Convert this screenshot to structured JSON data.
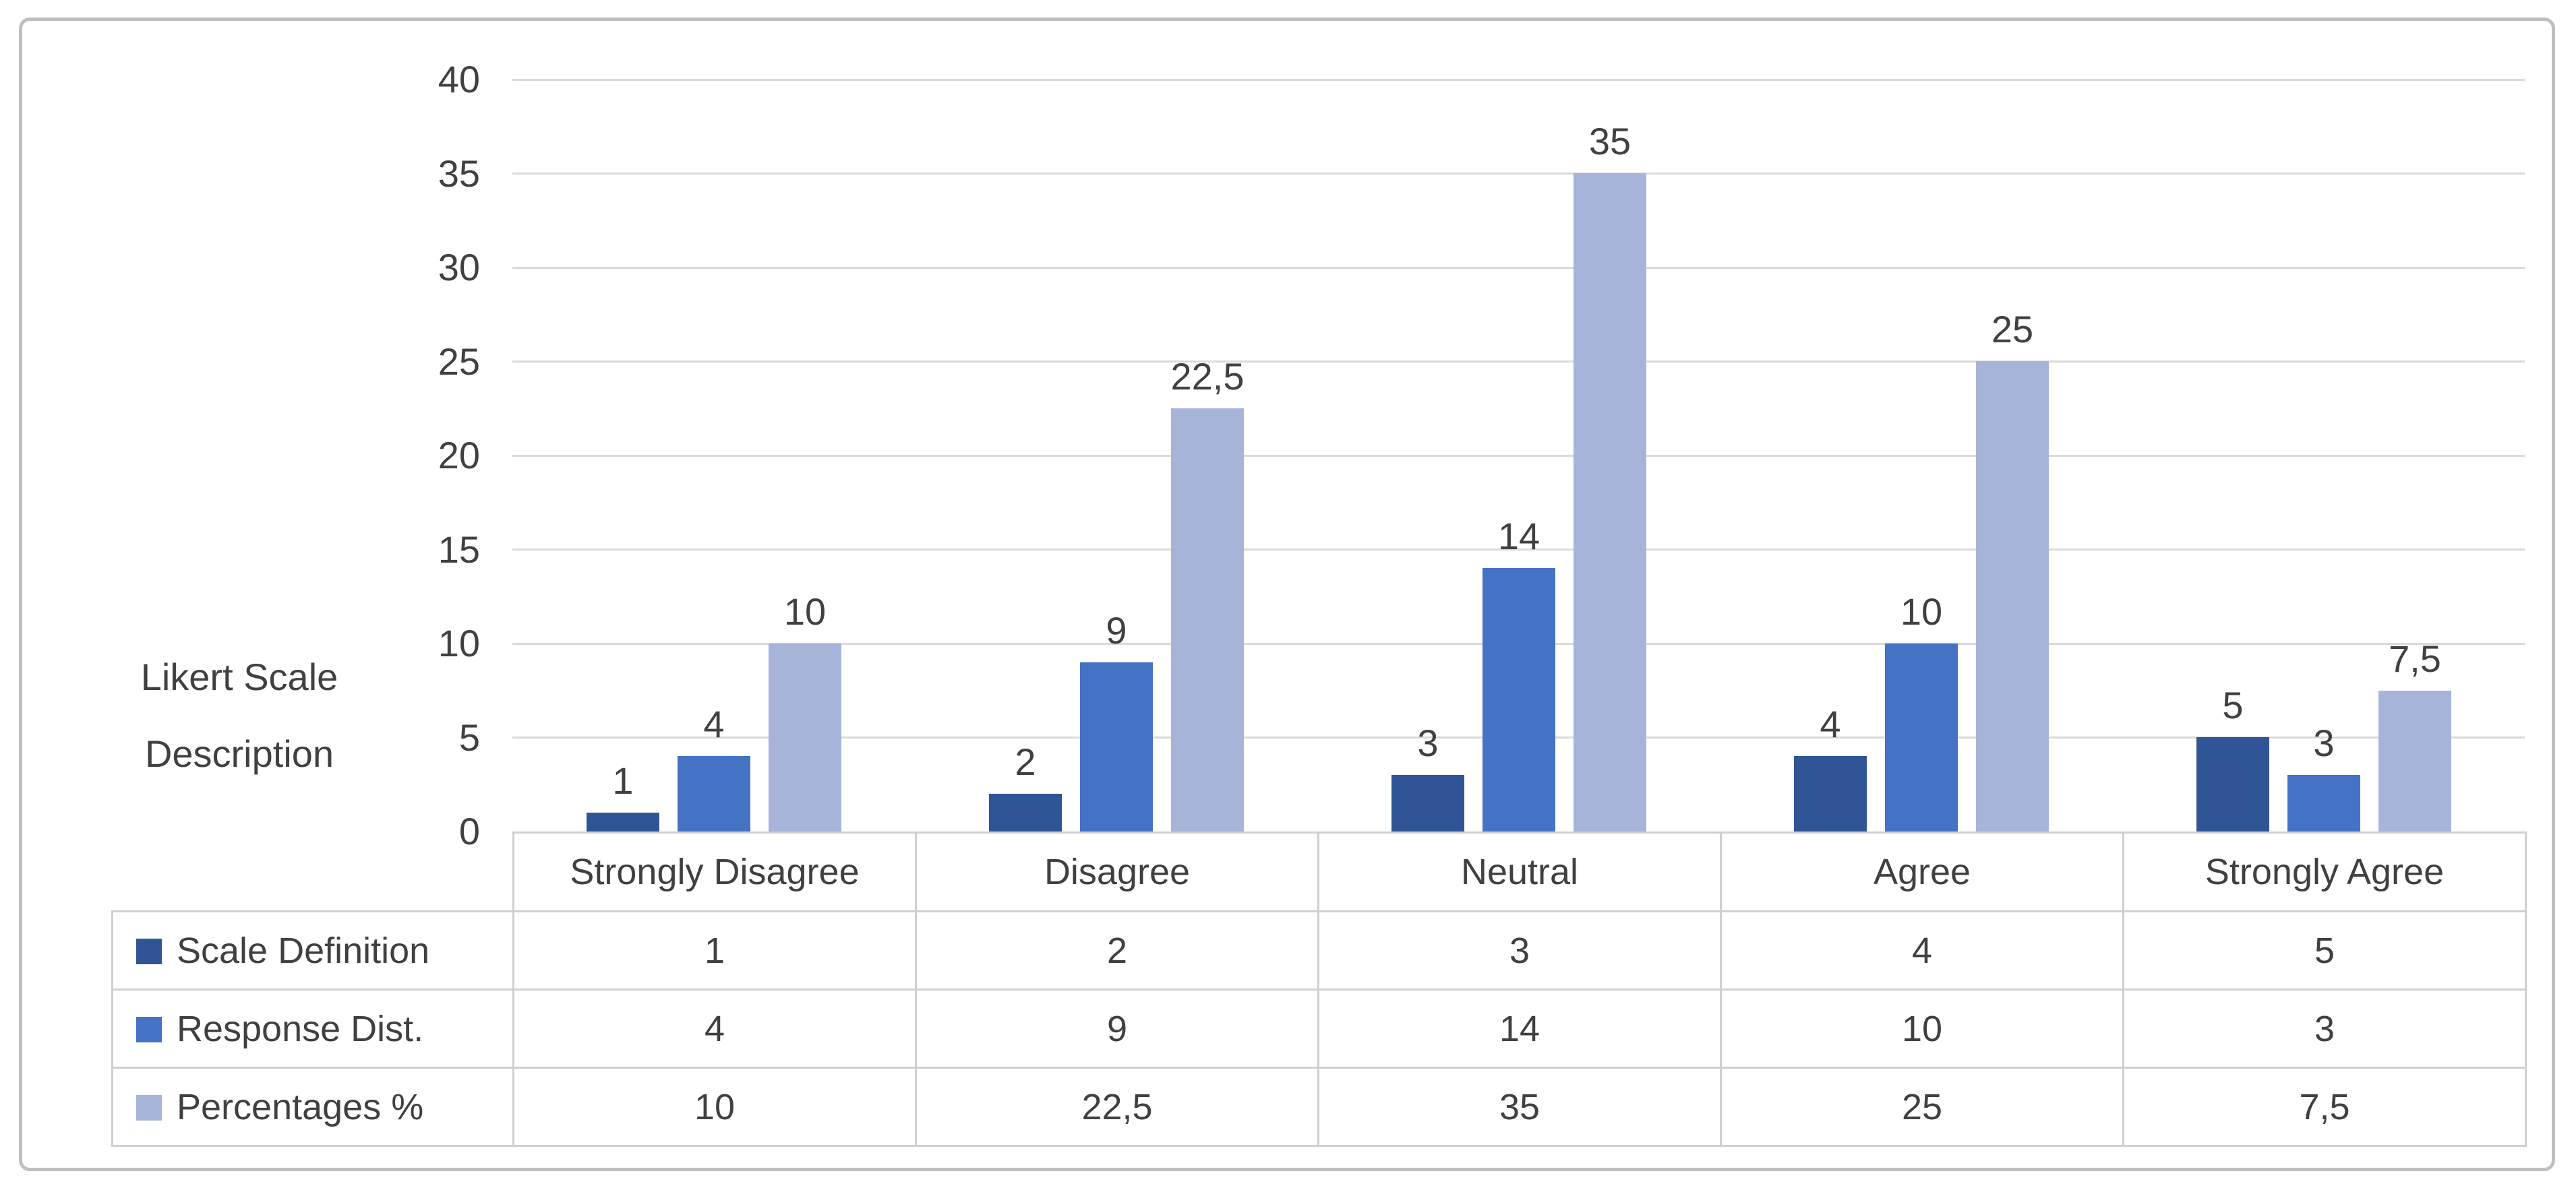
{
  "figure": {
    "background": "#ffffff",
    "border_color": "#bfbfbf"
  },
  "chart_data": {
    "type": "bar",
    "title": "",
    "categories": [
      "Strongly Disagree",
      "Disagree",
      "Neutral",
      "Agree",
      "Strongly Agree"
    ],
    "series": [
      {
        "name": "Scale Definition",
        "color": "#2f5597",
        "values": [
          1,
          2,
          3,
          4,
          5
        ],
        "labels": [
          "1",
          "2",
          "3",
          "4",
          "5"
        ]
      },
      {
        "name": "Response Dist.",
        "color": "#4472c4",
        "values": [
          4,
          9,
          14,
          10,
          3
        ],
        "labels": [
          "4",
          "9",
          "14",
          "10",
          "3"
        ]
      },
      {
        "name": "Percentages %",
        "color": "#a7b4da",
        "values": [
          10,
          22.5,
          35,
          25,
          7.5
        ],
        "labels": [
          "10",
          "22,5",
          "35",
          "25",
          "7,5"
        ]
      }
    ],
    "y_axis": {
      "title_lines": [
        "Likert Scale",
        "Description"
      ],
      "min": 0,
      "max": 40,
      "step": 5,
      "tick_labels": [
        "0",
        "5",
        "10",
        "15",
        "20",
        "25",
        "30",
        "35",
        "40"
      ]
    },
    "grid": true,
    "data_labels": true,
    "legend_position": "table-left",
    "gridline_color": "#d9d9d9",
    "table_border_color": "#cfcfcf",
    "text_color": "#404040"
  }
}
